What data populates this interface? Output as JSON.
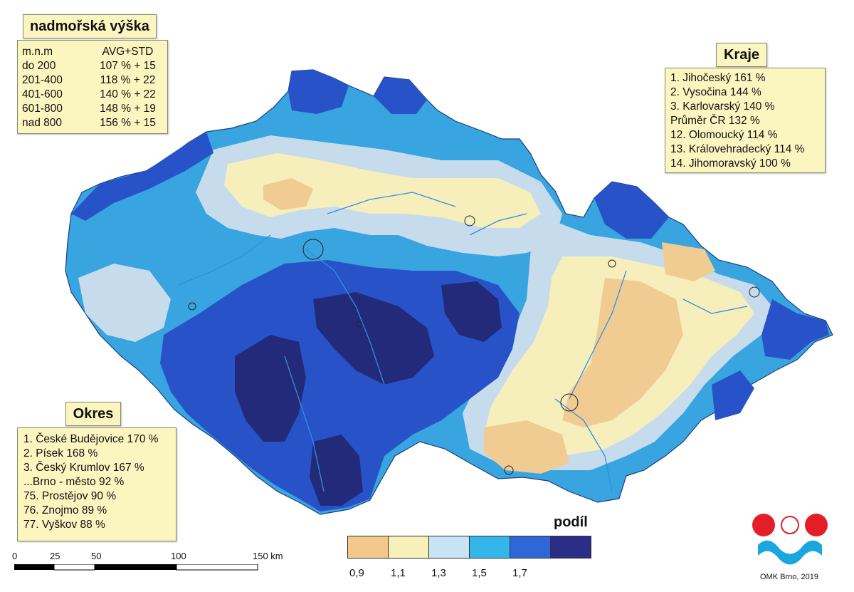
{
  "altitude": {
    "title": "nadmořská výška",
    "header": [
      "m.n.m",
      "AVG+STD"
    ],
    "rows": [
      [
        "do 200",
        "107 % + 15"
      ],
      [
        "201-400",
        "118 % + 22"
      ],
      [
        "401-600",
        "140 % + 22"
      ],
      [
        "601-800",
        "148 % + 19"
      ],
      [
        "nad 800",
        "156 % + 15"
      ]
    ]
  },
  "regions": {
    "title": "Kraje",
    "rows": [
      "1. Jihočeský 161 %",
      "2. Vysočina 144 %",
      "3. Karlovarský 140 %",
      "Průměr ČR 132 %",
      "12. Olomoucký 114 %",
      "13. Královehradecký 114 %",
      "14. Jihomoravský 100 %"
    ]
  },
  "districts": {
    "title": "Okres",
    "rows": [
      "1. České Budějovice 170 %",
      "2. Písek 168 %",
      "3. Český Krumlov 167 %",
      "...Brno - město 92 %",
      "75. Prostějov 90 %",
      "76. Znojmo 89 %",
      "77. Vyškov 88 %"
    ]
  },
  "legend": {
    "title": "podíl",
    "colors": [
      "#f2c98a",
      "#f7f0b8",
      "#c8e4f4",
      "#33b6ea",
      "#2f67d8",
      "#2a2e86"
    ],
    "labels": [
      "0,9",
      "1,1",
      "1,3",
      "1,5",
      "1,7"
    ]
  },
  "scale_bar": {
    "labels": [
      "0",
      "25",
      "50",
      "100",
      "150 km"
    ]
  },
  "credit": "OMK Brno, 2019",
  "map_colors": {
    "base": "#38a4e0",
    "light": "#c6dcec",
    "tan": "#f1cc92",
    "cream": "#f6efbc",
    "dark": "#2853c8",
    "darkest": "#232a7a",
    "river": "#2f8fe0"
  }
}
